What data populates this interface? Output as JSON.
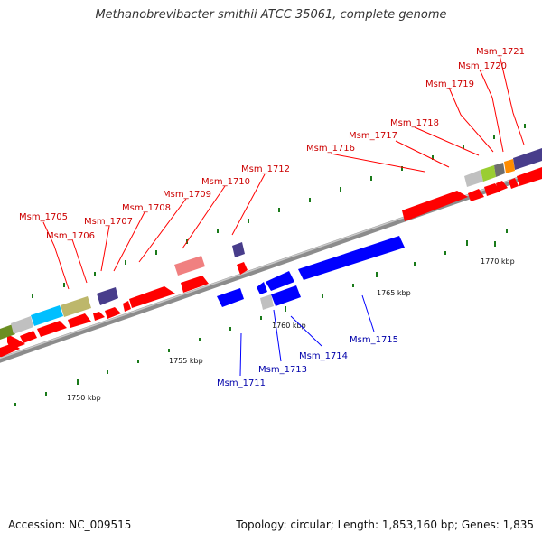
{
  "title": "Methanobrevibacter smithii ATCC 35061, complete genome",
  "footer": {
    "accession": "Accession: NC_009515",
    "summary": "Topology: circular; Length: 1,853,160 bp; Genes: 1,835"
  },
  "colors": {
    "forward_gene": "#ff0000",
    "reverse_gene": "#0000ff",
    "forward_label": "#cc0000",
    "reverse_label": "#0000aa",
    "backbone": "#8c8c8c",
    "tick": "#1a7a1a"
  },
  "scale_labels": [
    "1750 kbp",
    "1755 kbp",
    "1760 kbp",
    "1765 kbp",
    "1770 kbp"
  ],
  "forward_gene_labels": [
    "Msm_1705",
    "Msm_1706",
    "Msm_1707",
    "Msm_1708",
    "Msm_1709",
    "Msm_1710",
    "Msm_1712",
    "Msm_1716",
    "Msm_1717",
    "Msm_1718",
    "Msm_1719",
    "Msm_1720",
    "Msm_1721"
  ],
  "reverse_gene_labels": [
    "Msm_1711",
    "Msm_1713",
    "Msm_1714",
    "Msm_1715"
  ]
}
